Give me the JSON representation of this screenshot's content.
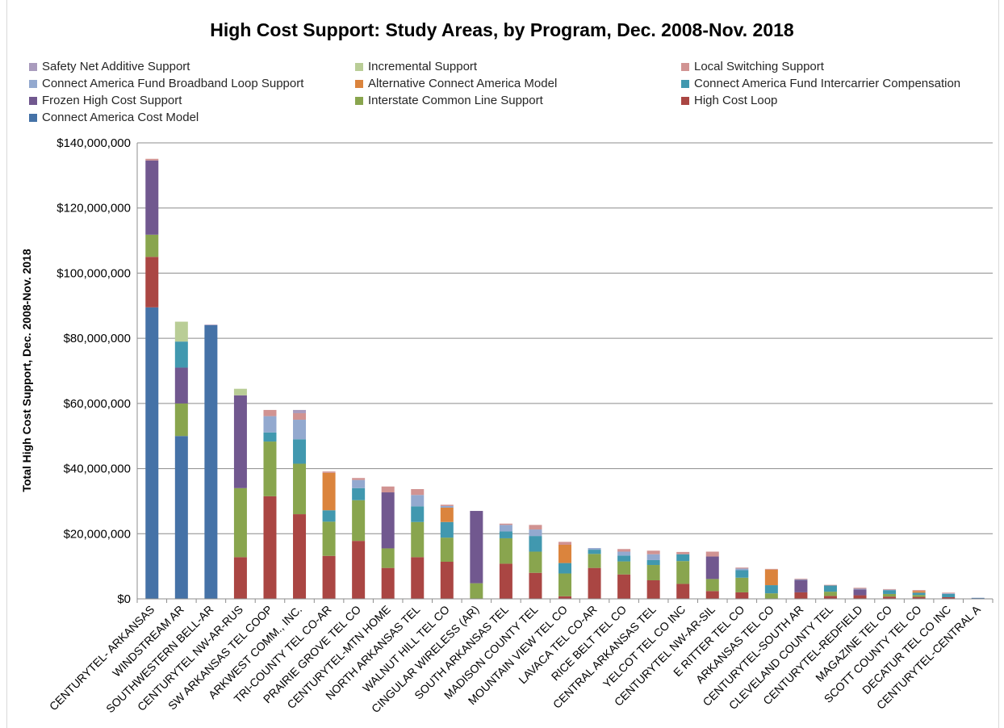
{
  "chart_data": {
    "type": "bar",
    "stacked": true,
    "title": "High Cost Support: Study Areas, by Program, Dec. 2008-Nov. 2018",
    "ylabel": "Total High Cost Support, Dec. 2008-Nov. 2018",
    "xlabel": "",
    "ylim": [
      0,
      140000000
    ],
    "yticks": [
      "$0",
      "$20,000,000",
      "$40,000,000",
      "$60,000,000",
      "$80,000,000",
      "$100,000,000",
      "$120,000,000",
      "$140,000,000"
    ],
    "grid": true,
    "legend_position": "top",
    "categories": [
      "CENTURYTEL- ARKANSAS",
      "WINDSTREAM AR",
      "SOUTHWESTERN BELL-AR",
      "CENTURYTEL NW-AR-RUS",
      "SW ARKANSAS TEL COOP",
      "ARKWEST COMM., INC.",
      "TRI-COUNTY TEL CO-AR",
      "PRAIRIE GROVE TEL CO",
      "CENTURYTEL-MTN HOME",
      "NORTH ARKANSAS TEL",
      "WALNUT HILL TEL CO",
      "CINGULAR WIRELESS (AR)",
      "SOUTH ARKANSAS TEL",
      "MADISON COUNTY TEL",
      "MOUNTAIN VIEW TEL CO",
      "LAVACA TEL CO-AR",
      "RICE BELT TEL CO",
      "CENTRAL ARKANSAS TEL",
      "YELCOT TEL CO INC",
      "CENTURYTEL NW-AR-SIL",
      "E RITTER TEL CO",
      "ARKANSAS TEL CO",
      "CENTURYTEL-SOUTH AR",
      "CLEVELAND COUNTY TEL",
      "CENTURYTEL-REDFIELD",
      "MAGAZINE TEL CO",
      "SCOTT COUNTY TEL CO",
      "DECATUR TEL CO INC",
      "CENTURYTEL-CENTRAL A"
    ],
    "series": [
      {
        "name": "Connect America Cost Model",
        "color": "#4572a7",
        "values": [
          89500000,
          50000000,
          84000000,
          0,
          0,
          0,
          0,
          0,
          0,
          0,
          0,
          0,
          0,
          0,
          0,
          0,
          0,
          0,
          0,
          0,
          0,
          0,
          0,
          0,
          0,
          0,
          0,
          0,
          300000
        ]
      },
      {
        "name": "High Cost Loop",
        "color": "#aa4643",
        "values": [
          15500000,
          0,
          0,
          12800000,
          31500000,
          26000000,
          13200000,
          17800000,
          9500000,
          12800000,
          11400000,
          0,
          10800000,
          8000000,
          800000,
          9500000,
          7500000,
          5700000,
          4600000,
          2400000,
          2000000,
          0,
          2000000,
          900000,
          1100000,
          700000,
          600000,
          500000,
          0
        ]
      },
      {
        "name": "Interstate Common Line Support",
        "color": "#89a54e",
        "values": [
          6800000,
          10000000,
          0,
          21200000,
          16800000,
          15500000,
          10500000,
          12500000,
          6000000,
          10800000,
          7400000,
          4800000,
          7800000,
          6500000,
          7000000,
          4300000,
          4000000,
          4700000,
          7000000,
          3700000,
          4500000,
          1700000,
          0,
          1300000,
          0,
          800000,
          600000,
          0,
          0
        ]
      },
      {
        "name": "Frozen High Cost Support",
        "color": "#71588f",
        "values": [
          22800000,
          11000000,
          0,
          28500000,
          0,
          0,
          0,
          0,
          17200000,
          0,
          0,
          22200000,
          0,
          0,
          0,
          0,
          0,
          0,
          0,
          6900000,
          0,
          0,
          3800000,
          0,
          1800000,
          0,
          0,
          0,
          0
        ]
      },
      {
        "name": "Connect America Fund Intercarrier Compensation",
        "color": "#4198af",
        "values": [
          0,
          8000000,
          0,
          0,
          2800000,
          7500000,
          3500000,
          3700000,
          0,
          4800000,
          4800000,
          0,
          2100000,
          4800000,
          3200000,
          1300000,
          1800000,
          1500000,
          2100000,
          0,
          2300000,
          2500000,
          0,
          1900000,
          0,
          1100000,
          700000,
          1000000,
          0
        ]
      },
      {
        "name": "Alternative Connect America Model",
        "color": "#db843d",
        "values": [
          0,
          0,
          0,
          0,
          0,
          0,
          11500000,
          0,
          0,
          0,
          4400000,
          0,
          0,
          0,
          5600000,
          0,
          0,
          0,
          0,
          0,
          0,
          4800000,
          0,
          0,
          0,
          0,
          500000,
          0,
          0
        ]
      },
      {
        "name": "Connect America Fund Broadband Loop Support",
        "color": "#93a9cf",
        "values": [
          0,
          0,
          0,
          0,
          5000000,
          6000000,
          0,
          2500000,
          0,
          3500000,
          500000,
          0,
          2000000,
          2000000,
          0,
          500000,
          1200000,
          1800000,
          0,
          0,
          500000,
          0,
          200000,
          0,
          200000,
          200000,
          0,
          200000,
          0
        ]
      },
      {
        "name": "Local Switching Support",
        "color": "#d19392",
        "values": [
          500000,
          0,
          0,
          0,
          1900000,
          2000000,
          400000,
          600000,
          1800000,
          1800000,
          400000,
          0,
          400000,
          1400000,
          900000,
          0,
          800000,
          1100000,
          700000,
          1500000,
          300000,
          200000,
          200000,
          200000,
          300000,
          200000,
          300000,
          200000,
          0
        ]
      },
      {
        "name": "Incremental Support",
        "color": "#b9cd96",
        "values": [
          0,
          6100000,
          0,
          2000000,
          0,
          0,
          0,
          0,
          0,
          0,
          0,
          0,
          0,
          0,
          0,
          0,
          0,
          0,
          0,
          0,
          0,
          0,
          0,
          0,
          0,
          0,
          0,
          0,
          0
        ]
      },
      {
        "name": "Safety Net Additive Support",
        "color": "#a99bbd",
        "values": [
          0,
          0,
          200000,
          0,
          0,
          1000000,
          0,
          0,
          0,
          0,
          0,
          0,
          0,
          0,
          0,
          0,
          0,
          0,
          0,
          0,
          0,
          0,
          0,
          0,
          0,
          0,
          0,
          0,
          0
        ]
      }
    ]
  },
  "legend": [
    {
      "label": "Safety Net Additive Support",
      "color": "#a99bbd"
    },
    {
      "label": "Incremental Support",
      "color": "#b9cd96"
    },
    {
      "label": "Local Switching Support",
      "color": "#d19392"
    },
    {
      "label": "Connect America Fund Broadband Loop Support",
      "color": "#93a9cf"
    },
    {
      "label": "Alternative Connect America Model",
      "color": "#db843d"
    },
    {
      "label": "Connect America Fund Intercarrier Compensation",
      "color": "#4198af"
    },
    {
      "label": "Frozen High Cost Support",
      "color": "#71588f"
    },
    {
      "label": "Interstate Common Line Support",
      "color": "#89a54e"
    },
    {
      "label": "High Cost Loop",
      "color": "#aa4643"
    },
    {
      "label": "Connect America Cost Model",
      "color": "#4572a7"
    }
  ]
}
